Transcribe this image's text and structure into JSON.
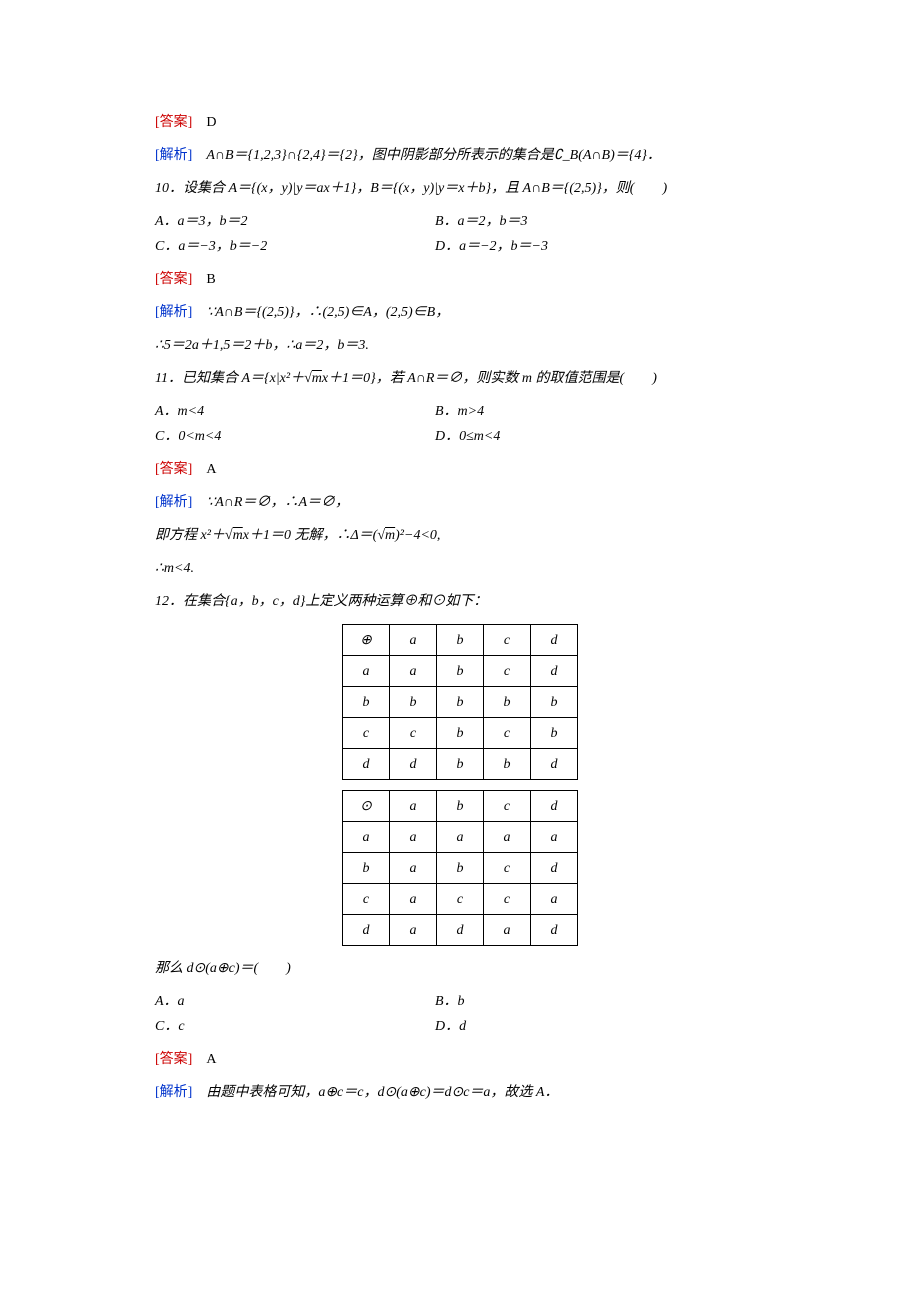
{
  "labels": {
    "answer": "[答案]",
    "analysis": "[解析]"
  },
  "prev": {
    "answer": "D",
    "analysis": "A∩B＝{1,2,3}∩{2,4}＝{2}，图中阴影部分所表示的集合是∁_B(A∩B)＝{4}．"
  },
  "q10": {
    "stem": "10．设集合 A＝{(x，y)|y＝ax＋1}，B＝{(x，y)|y＝x＋b}，且 A∩B＝{(2,5)}，则(　　)",
    "optA": "A．a＝3，b＝2",
    "optB": "B．a＝2，b＝3",
    "optC": "C．a＝−3，b＝−2",
    "optD": "D．a＝−2，b＝−3",
    "answer": "B",
    "analysis1": "∵A∩B＝{(2,5)}，∴(2,5)∈A，(2,5)∈B，",
    "analysis2": "∴5＝2a＋1,5＝2＋b，∴a＝2，b＝3."
  },
  "q11": {
    "stem_pre": "11．已知集合 A＝{x|x²＋",
    "stem_sqrt": "m",
    "stem_post": "x＋1＝0}，若 A∩R＝∅，则实数 m 的取值范围是(　　)",
    "optA": "A．m<4",
    "optB": "B．m>4",
    "optC": "C．0<m<4",
    "optD": "D．0≤m<4",
    "answer": "A",
    "analysis1": "∵A∩R＝∅，∴A＝∅，",
    "analysis2_pre": "即方程 x²＋",
    "analysis2_sqrt1": "m",
    "analysis2_mid": "x＋1＝0 无解，∴Δ＝(",
    "analysis2_sqrt2": "m",
    "analysis2_post": ")²−4<0,",
    "analysis3": "∴m<4."
  },
  "q12": {
    "stem": "12．在集合{a，b，c，d}上定义两种运算⊕和⊙如下：",
    "table1": {
      "header": [
        "⊕",
        "a",
        "b",
        "c",
        "d"
      ],
      "rows": [
        [
          "a",
          "a",
          "b",
          "c",
          "d"
        ],
        [
          "b",
          "b",
          "b",
          "b",
          "b"
        ],
        [
          "c",
          "c",
          "b",
          "c",
          "b"
        ],
        [
          "d",
          "d",
          "b",
          "b",
          "d"
        ]
      ]
    },
    "table2": {
      "header": [
        "⊙",
        "a",
        "b",
        "c",
        "d"
      ],
      "rows": [
        [
          "a",
          "a",
          "a",
          "a",
          "a"
        ],
        [
          "b",
          "a",
          "b",
          "c",
          "d"
        ],
        [
          "c",
          "a",
          "c",
          "c",
          "a"
        ],
        [
          "d",
          "a",
          "d",
          "a",
          "d"
        ]
      ]
    },
    "question": "那么 d⊙(a⊕c)＝(　　)",
    "optA": "A．a",
    "optB": "B．b",
    "optC": "C．c",
    "optD": "D．d",
    "answer": "A",
    "analysis": "由题中表格可知，a⊕c＝c，d⊙(a⊕c)＝d⊙c＝a，故选 A．"
  }
}
